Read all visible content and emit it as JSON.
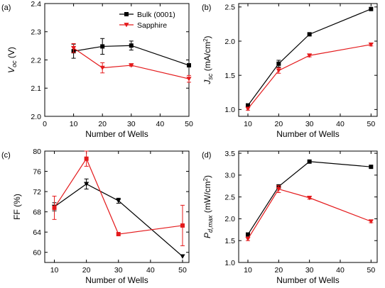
{
  "colors": {
    "bulk": "#000000",
    "sapphire": "#e41a1c"
  },
  "chart_data": [
    {
      "type": "line",
      "panel_label": "(a)",
      "xlabel": "Number of Wells",
      "ylabel": {
        "main": "V",
        "sub": "oc",
        "rest": " (V)"
      },
      "xlim": [
        0,
        50
      ],
      "ylim": [
        2.0,
        2.4
      ],
      "xticks": [
        0,
        10,
        20,
        30,
        40,
        50
      ],
      "xtick_labels": [
        "0",
        "10",
        "20",
        "30",
        "40",
        "50"
      ],
      "yticks": [
        2.0,
        2.1,
        2.2,
        2.3,
        2.4
      ],
      "ytick_labels": [
        "2.0",
        "2.1",
        "2.2",
        "2.3",
        "2.4"
      ],
      "legend_position": "top-right",
      "series": [
        {
          "name": "Bulk (0001)",
          "color": "#000000",
          "marker": "square",
          "x": [
            10,
            20,
            30,
            50
          ],
          "y": [
            2.231,
            2.248,
            2.251,
            2.181
          ],
          "err": [
            0.025,
            0.028,
            0.016,
            0.003
          ]
        },
        {
          "name": "Sapphire",
          "color": "#e41a1c",
          "marker": "triangle-down",
          "x": [
            10,
            20,
            30,
            50
          ],
          "y": [
            2.242,
            2.172,
            2.181,
            2.133
          ],
          "err": [
            0.016,
            0.018,
            0.003,
            0.012
          ]
        }
      ]
    },
    {
      "type": "line",
      "panel_label": "(b)",
      "xlabel": "Number of Wells",
      "ylabel": {
        "main": "J",
        "sub": "sc",
        "rest": " (mA/cm",
        "sup": "2",
        "end": ")"
      },
      "xlim": [
        7,
        52
      ],
      "ylim": [
        0.9,
        2.55
      ],
      "xticks": [
        10,
        20,
        30,
        40,
        50
      ],
      "xtick_labels": [
        "10",
        "20",
        "30",
        "40",
        "50"
      ],
      "yticks": [
        1.0,
        1.5,
        2.0,
        2.5
      ],
      "ytick_labels": [
        "1.0",
        "1.5",
        "2.0",
        "2.5"
      ],
      "series": [
        {
          "name": "Bulk (0001)",
          "color": "#000000",
          "marker": "square",
          "x": [
            10,
            20,
            30,
            50
          ],
          "y": [
            1.06,
            1.67,
            2.1,
            2.47
          ],
          "err": [
            0.01,
            0.05,
            0.0,
            0.0
          ]
        },
        {
          "name": "Sapphire",
          "color": "#e41a1c",
          "marker": "triangle-down",
          "x": [
            10,
            20,
            30,
            50
          ],
          "y": [
            1.01,
            1.57,
            1.79,
            1.95
          ],
          "err": [
            0.02,
            0.04,
            0.02,
            0.02
          ]
        }
      ]
    },
    {
      "type": "line",
      "panel_label": "(c)",
      "xlabel": "Number of Wells",
      "ylabel": {
        "main": "FF (%)"
      },
      "xlim": [
        7,
        52
      ],
      "ylim": [
        58,
        80
      ],
      "xticks": [
        10,
        20,
        30,
        40,
        50
      ],
      "xtick_labels": [
        "10",
        "20",
        "30",
        "40",
        "50"
      ],
      "yticks": [
        60,
        64,
        68,
        72,
        76,
        80
      ],
      "ytick_labels": [
        "60",
        "64",
        "68",
        "72",
        "76",
        "80"
      ],
      "series": [
        {
          "name": "Bulk (0001)",
          "color": "#000000",
          "marker": "triangle-down",
          "x": [
            10,
            20,
            30,
            50
          ],
          "y": [
            69.0,
            73.5,
            70.2,
            59.2
          ],
          "err": [
            0.8,
            1.0,
            0.5,
            0.0
          ]
        },
        {
          "name": "Sapphire",
          "color": "#e41a1c",
          "marker": "square",
          "x": [
            10,
            20,
            30,
            50
          ],
          "y": [
            68.8,
            78.5,
            63.6,
            65.3
          ],
          "err": [
            2.3,
            1.5,
            0.0,
            4.0
          ]
        }
      ]
    },
    {
      "type": "line",
      "panel_label": "(d)",
      "xlabel": "Number of Wells",
      "ylabel": {
        "main": "P",
        "sub": "d,max",
        "rest": " (mW/cm",
        "sup": "2",
        "end": ")"
      },
      "xlim": [
        7,
        52
      ],
      "ylim": [
        1.0,
        3.55
      ],
      "xticks": [
        10,
        20,
        30,
        40,
        50
      ],
      "xtick_labels": [
        "10",
        "20",
        "30",
        "40",
        "50"
      ],
      "yticks": [
        1.0,
        1.5,
        2.0,
        2.5,
        3.0,
        3.5
      ],
      "ytick_labels": [
        "1.0",
        "1.5",
        "2.0",
        "2.5",
        "3.0",
        "3.5"
      ],
      "series": [
        {
          "name": "Bulk (0001)",
          "color": "#000000",
          "marker": "square",
          "x": [
            10,
            20,
            30,
            50
          ],
          "y": [
            1.64,
            2.74,
            3.31,
            3.19
          ],
          "err": [
            0.02,
            0.04,
            0.0,
            0.0
          ]
        },
        {
          "name": "Sapphire",
          "color": "#e41a1c",
          "marker": "triangle-down",
          "x": [
            10,
            20,
            30,
            50
          ],
          "y": [
            1.54,
            2.68,
            2.48,
            1.94
          ],
          "err": [
            0.04,
            0.08,
            0.03,
            0.03
          ]
        }
      ]
    }
  ]
}
